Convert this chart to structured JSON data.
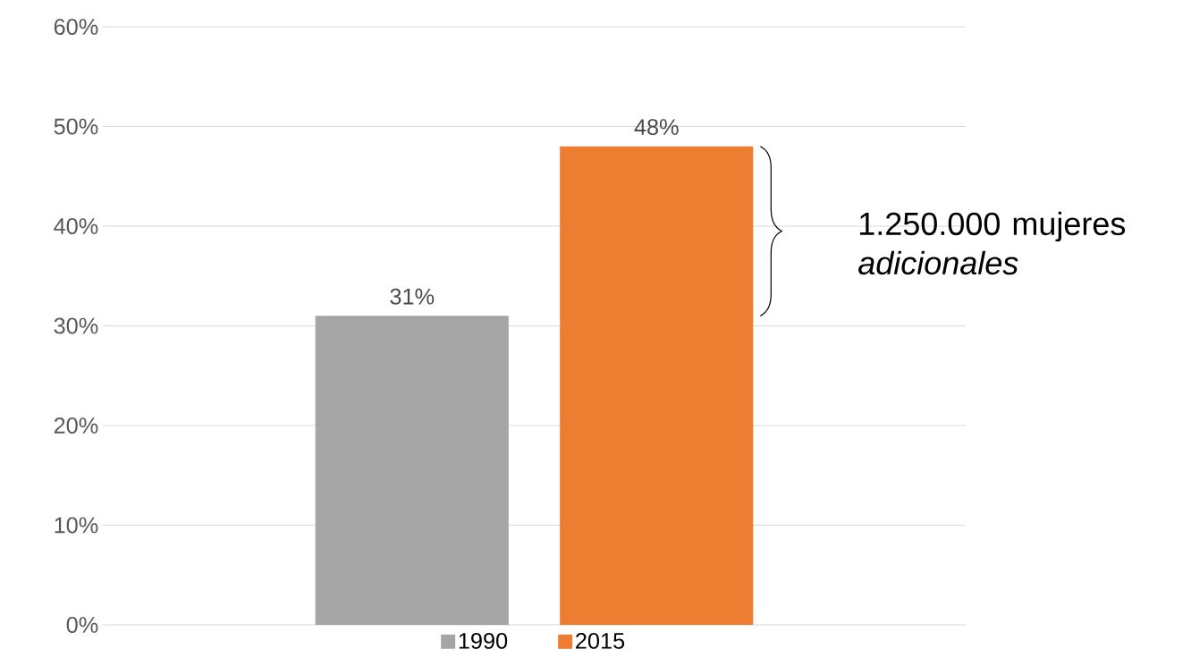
{
  "chart_data": {
    "type": "bar",
    "categories": [
      null
    ],
    "series": [
      {
        "name": "1990",
        "color": "#a5a5a5",
        "values": [
          31
        ],
        "value_labels": [
          "31%"
        ]
      },
      {
        "name": "2015",
        "color": "#ed7d31",
        "values": [
          48
        ],
        "value_labels": [
          "48%"
        ]
      }
    ],
    "ylim": [
      0,
      60
    ],
    "yticks": [
      {
        "value": 0,
        "label": "0%"
      },
      {
        "value": 10,
        "label": "10%"
      },
      {
        "value": 20,
        "label": "20%"
      },
      {
        "value": 30,
        "label": "30%"
      },
      {
        "value": 40,
        "label": "40%"
      },
      {
        "value": 50,
        "label": "50%"
      },
      {
        "value": 60,
        "label": "60%"
      }
    ],
    "grid": "y",
    "legend": "bottom",
    "annotations": [
      "1.250.000 mujeres *adicionales*"
    ]
  }
}
